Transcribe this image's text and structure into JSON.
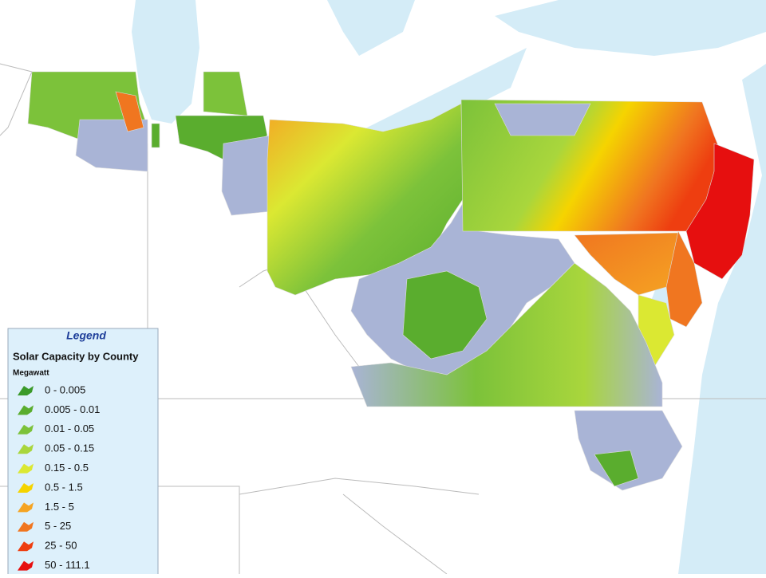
{
  "legend": {
    "title": "Legend",
    "subtitle": "Solar Capacity by County",
    "unit": "Megawatt",
    "classes": [
      {
        "label": "0 - 0.005",
        "color": "#3b9a2a"
      },
      {
        "label": "0.005 - 0.01",
        "color": "#5aad2e"
      },
      {
        "label": "0.01 - 0.05",
        "color": "#7cc23a"
      },
      {
        "label": "0.05 - 0.15",
        "color": "#a9d63c"
      },
      {
        "label": "0.15 - 0.5",
        "color": "#dbe832"
      },
      {
        "label": "0.5 - 1.5",
        "color": "#f5d400"
      },
      {
        "label": "1.5 - 5",
        "color": "#f5a423"
      },
      {
        "label": "5 - 25",
        "color": "#f07620"
      },
      {
        "label": "25 - 50",
        "color": "#ee3e10"
      },
      {
        "label": "50 - 111.1",
        "color": "#e60f0f"
      }
    ]
  }
}
